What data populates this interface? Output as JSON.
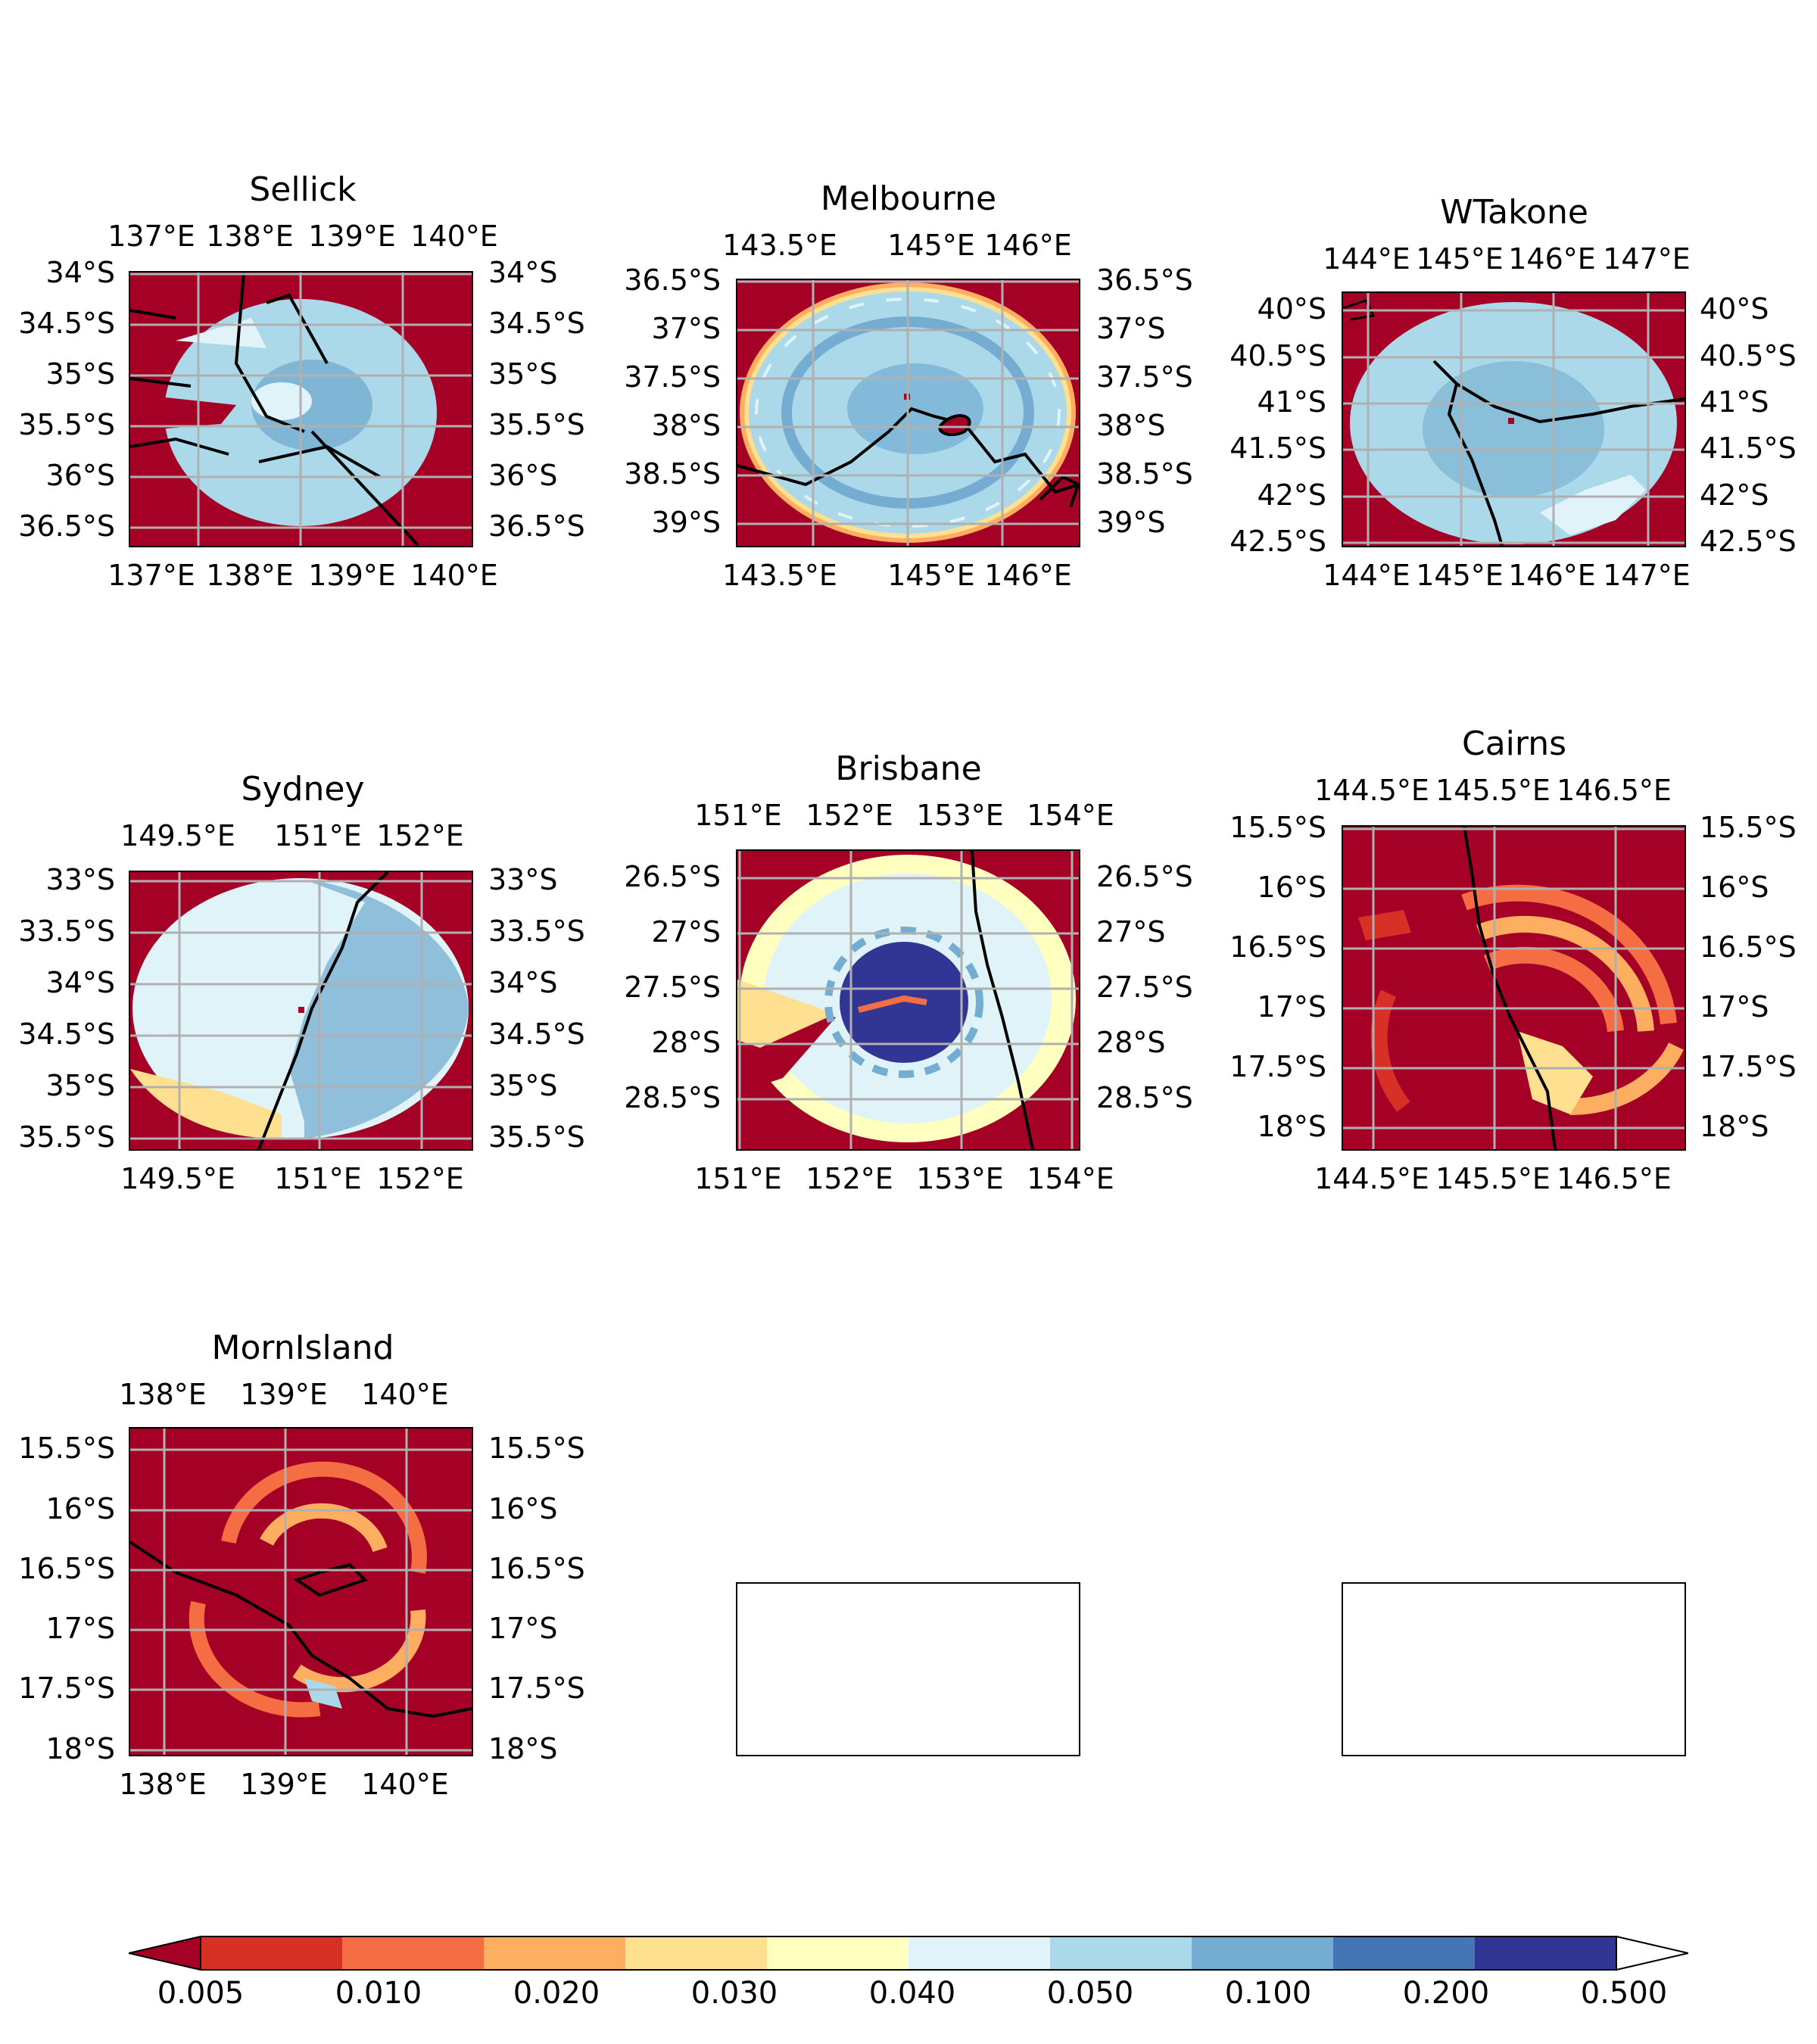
{
  "panels": [
    {
      "title": "Sellick",
      "xticks": [
        "137°E",
        "138°E",
        "139°E",
        "140°E"
      ],
      "yticks": [
        "34°S",
        "34.5°S",
        "35°S",
        "35.5°S",
        "36°S",
        "36.5°S"
      ]
    },
    {
      "title": "Melbourne",
      "xticks": [
        "143.5°E",
        "145°E",
        "146°E"
      ],
      "yticks": [
        "36.5°S",
        "37°S",
        "37.5°S",
        "38°S",
        "38.5°S",
        "39°S"
      ]
    },
    {
      "title": "WTakone",
      "xticks": [
        "144°E",
        "145°E",
        "146°E",
        "147°E"
      ],
      "yticks": [
        "40°S",
        "40.5°S",
        "41°S",
        "41.5°S",
        "42°S",
        "42.5°S"
      ]
    },
    {
      "title": "Sydney",
      "xticks": [
        "149.5°E",
        "151°E",
        "152°E"
      ],
      "yticks": [
        "33°S",
        "33.5°S",
        "34°S",
        "34.5°S",
        "35°S",
        "35.5°S"
      ]
    },
    {
      "title": "Brisbane",
      "xticks": [
        "151°E",
        "152°E",
        "153°E",
        "154°E"
      ],
      "yticks": [
        "26.5°S",
        "27°S",
        "27.5°S",
        "28°S",
        "28.5°S"
      ]
    },
    {
      "title": "Cairns",
      "xticks": [
        "144.5°E",
        "145.5°E",
        "146.5°E"
      ],
      "yticks": [
        "15.5°S",
        "16°S",
        "16.5°S",
        "17°S",
        "17.5°S",
        "18°S"
      ]
    },
    {
      "title": "MornIsland",
      "xticks": [
        "138°E",
        "139°E",
        "140°E"
      ],
      "yticks": [
        "15.5°S",
        "16°S",
        "16.5°S",
        "17°S",
        "17.5°S",
        "18°S"
      ]
    }
  ],
  "colorbar": {
    "labels": [
      "0.005",
      "0.010",
      "0.020",
      "0.030",
      "0.040",
      "0.050",
      "0.100",
      "0.200",
      "0.500"
    ],
    "colors": [
      "#a50026",
      "#d73027",
      "#f46d43",
      "#fdae61",
      "#fee090",
      "#ffffbf",
      "#e0f3f8",
      "#abd9e9",
      "#74add1",
      "#4575b4",
      "#313695",
      "#ffffff"
    ]
  }
}
